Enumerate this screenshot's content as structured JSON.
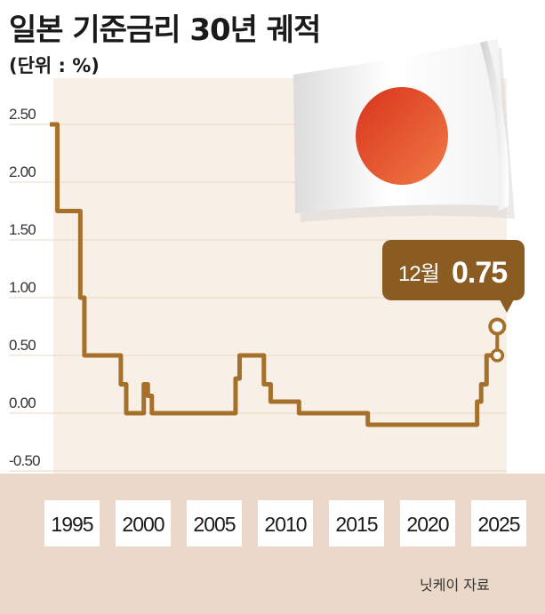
{
  "header": {
    "title": "일본 기준금리 30년 궤적",
    "unit": "(단위 : %)"
  },
  "source": "닛케이 자료",
  "colors": {
    "line": "#a5712a",
    "callout": "#8a5c22",
    "plot_bg": "#f8efe6",
    "band_bg": "#ead9c8",
    "grid": "#e8d8c6",
    "flag_red": "#e04a22"
  },
  "icons": {
    "flag": "japan-flag-icon"
  },
  "chart_data": {
    "type": "line",
    "step": true,
    "title": "일본 기준금리 30년 궤적",
    "unit": "(단위 : %)",
    "xlim": [
      1995,
      2026
    ],
    "ylim": [
      -0.5,
      2.5
    ],
    "yticks": [
      -0.5,
      0.0,
      0.5,
      1.0,
      1.5,
      2.0,
      2.5
    ],
    "ytick_labels": [
      "-0.50",
      "0.00",
      "0.50",
      "1.00",
      "1.50",
      "2.00",
      "2.50"
    ],
    "xticks": [
      1995,
      2000,
      2005,
      2010,
      2015,
      2020,
      2025
    ],
    "xtick_labels": [
      "1995",
      "2000",
      "2005",
      "2010",
      "2015",
      "2020",
      "2025"
    ],
    "grid": true,
    "series": [
      {
        "points": [
          [
            1995.0,
            2.5
          ],
          [
            1995.3,
            1.75
          ],
          [
            1997.0,
            1.0
          ],
          [
            1997.3,
            0.5
          ],
          [
            2000.0,
            0.25
          ],
          [
            2000.4,
            0.0
          ],
          [
            2001.7,
            0.25
          ],
          [
            2002.0,
            0.15
          ],
          [
            2002.3,
            0.0
          ],
          [
            2008.5,
            0.3
          ],
          [
            2008.8,
            0.5
          ],
          [
            2010.6,
            0.25
          ],
          [
            2011.1,
            0.1
          ],
          [
            2013.2,
            0.0
          ],
          [
            2018.3,
            -0.1
          ],
          [
            2026.4,
            0.1
          ],
          [
            2026.7,
            0.25
          ],
          [
            2027.1,
            0.5
          ],
          [
            2028.0,
            0.75
          ]
        ]
      }
    ],
    "annotation": {
      "label": "12월",
      "value": "0.75"
    }
  }
}
